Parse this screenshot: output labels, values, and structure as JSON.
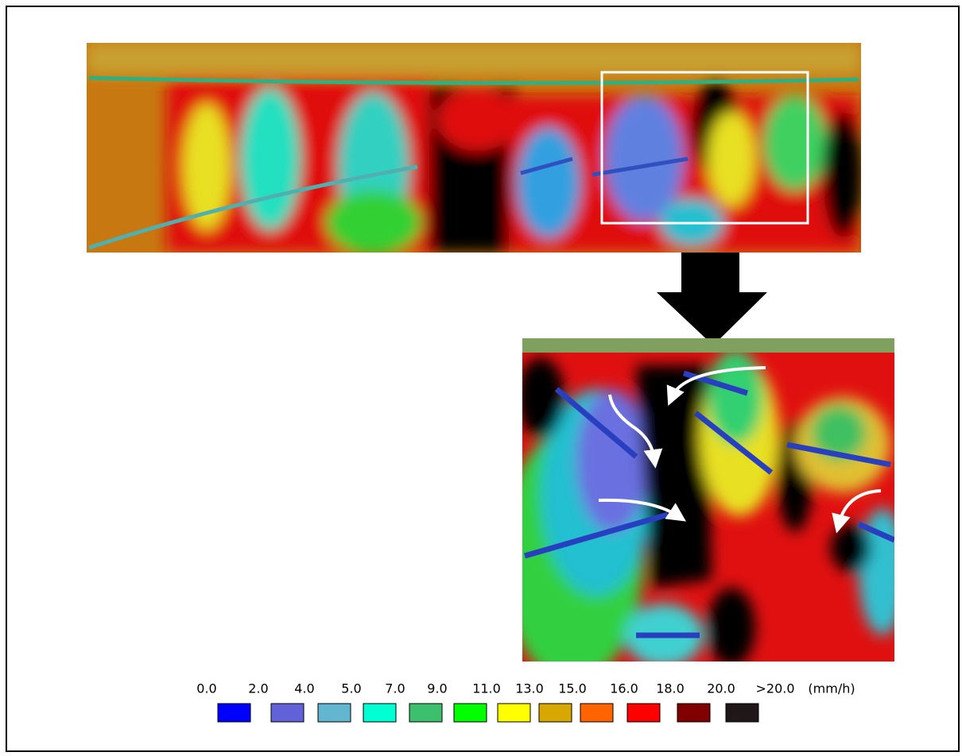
{
  "legend": {
    "labels": [
      "0.0",
      "2.0",
      "4.0",
      "5.0",
      "7.0",
      "9.0",
      "11.0",
      "13.0",
      "15.0",
      "16.0",
      "18.0",
      "20.0",
      ">20.0"
    ],
    "unit": "(mm/h)",
    "colors": [
      "#0000ff",
      "#6262d8",
      "#62b6d0",
      "#00ffd2",
      "#3cc06e",
      "#00ff00",
      "#ffff00",
      "#d6a800",
      "#ff6400",
      "#ff0000",
      "#800000",
      "#201818"
    ]
  }
}
